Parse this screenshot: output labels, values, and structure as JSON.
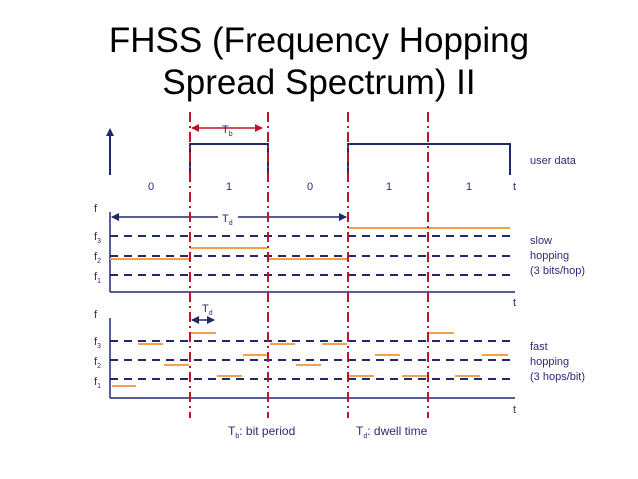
{
  "title_line1": "FHSS (Frequency Hopping",
  "title_line2": "Spread Spectrum) II",
  "colors": {
    "axis": "#1f2a6b",
    "dash": "#1f2a6b",
    "boundary": "#c0142b",
    "hop": "#f4a04a",
    "text": "#2b2b7a"
  },
  "top": {
    "tb_label": "T",
    "tb_sub": "b",
    "bits": [
      "0",
      "1",
      "0",
      "1",
      "1"
    ],
    "t_label": "t",
    "side_label": "user data"
  },
  "slow": {
    "f_label": "f",
    "t_label": "t",
    "td_label": "T",
    "td_sub": "d",
    "freqs": [
      {
        "main": "f",
        "sub": "3"
      },
      {
        "main": "f",
        "sub": "2"
      },
      {
        "main": "f",
        "sub": "1"
      }
    ],
    "side_line1": "slow",
    "side_line2": "hopping",
    "side_line3": "(3 bits/hop)"
  },
  "fast": {
    "f_label": "f",
    "t_label": "t",
    "td_label": "T",
    "td_sub": "d",
    "freqs": [
      {
        "main": "f",
        "sub": "3"
      },
      {
        "main": "f",
        "sub": "2"
      },
      {
        "main": "f",
        "sub": "1"
      }
    ],
    "side_line1": "fast",
    "side_line2": "hopping",
    "side_line3": "(3 hops/bit)"
  },
  "legend": {
    "tb_main": "T",
    "tb_sub": "b",
    "tb_text": ": bit period",
    "td_main": "T",
    "td_sub": "d",
    "td_text": ": dwell time"
  }
}
